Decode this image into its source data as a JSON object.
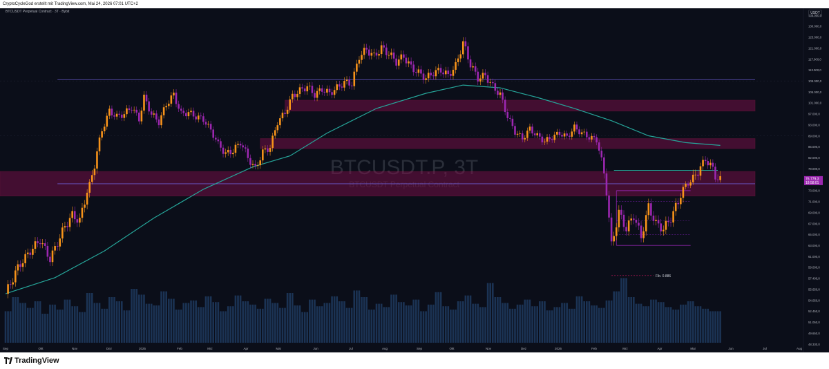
{
  "header": {
    "author_line": "CryptoCycleGod erstellt mit TradingView.com, Mai 24, 2026 07:01 UTC+2"
  },
  "chart_legend": "BTCUSDT Perpetual Contract · 3T · Bybit",
  "currency": "USDT",
  "watermark": {
    "symbol": "BTCUSDT.P, 3T",
    "name": "BTCUSDT Perpetual Contract"
  },
  "footer": {
    "brand": "TradingView"
  },
  "price_labels": {
    "last": "76.779,3",
    "countdown": "18:58:01"
  },
  "annotation": {
    "fib": "Fib. 0.886"
  },
  "colors": {
    "background": "#0b0e19",
    "up_candle": "#f7931a",
    "down_candle": "#9c27b0",
    "ma_line": "#26a69a",
    "zone_fill": "#880e4f",
    "level_line": "#6a5acd",
    "volume": "#1e3a5f"
  },
  "chart_data": {
    "type": "candlestick",
    "interval": "3T",
    "y_ticks": [
      "48.330,0",
      "49.650,0",
      "51.050,0",
      "52.450,0",
      "54.050,0",
      "55.650,0",
      "57.400,0",
      "59.000,0",
      "61.000,0",
      "63.000,0",
      "65.000,0",
      "67.000,0",
      "69.000,0",
      "71.000,0",
      "73.000,0",
      "77.000,0",
      "79.000,0",
      "82.000,0",
      "85.000,0",
      "89.000,0",
      "93.000,0",
      "97.000,0",
      "101.000,0",
      "105.000,0",
      "109.000,0",
      "113.000,0",
      "117.000,0",
      "121.000,0",
      "125.000,0",
      "130.000,0",
      "135.000,0"
    ],
    "x_ticks": [
      "Sep",
      "Okt",
      "Nov",
      "Dez",
      "2025",
      "Feb",
      "Mrz",
      "Apr",
      "Mai",
      "Jun",
      "Jul",
      "Aug",
      "Sep",
      "Okt",
      "Nov",
      "Dez",
      "2026",
      "Feb",
      "Mrz",
      "Apr",
      "Mai",
      "Jun",
      "Jul",
      "Aug"
    ],
    "price_path": [
      [
        0,
        55000
      ],
      [
        5,
        59000
      ],
      [
        10,
        62000
      ],
      [
        14,
        64000
      ],
      [
        18,
        60500
      ],
      [
        21,
        63500
      ],
      [
        24,
        66500
      ],
      [
        27,
        68500
      ],
      [
        30,
        67500
      ],
      [
        33,
        73000
      ],
      [
        36,
        80000
      ],
      [
        39,
        91000
      ],
      [
        42,
        98000
      ],
      [
        45,
        96000
      ],
      [
        48,
        97000
      ],
      [
        51,
        99500
      ],
      [
        54,
        95000
      ],
      [
        56,
        103000
      ],
      [
        59,
        97000
      ],
      [
        62,
        94000
      ],
      [
        65,
        100500
      ],
      [
        68,
        104000
      ],
      [
        71,
        97000
      ],
      [
        74,
        97500
      ],
      [
        77,
        96000
      ],
      [
        80,
        95000
      ],
      [
        83,
        91000
      ],
      [
        86,
        86000
      ],
      [
        89,
        83000
      ],
      [
        92,
        84000
      ],
      [
        95,
        86500
      ],
      [
        98,
        82000
      ],
      [
        101,
        79000
      ],
      [
        104,
        83500
      ],
      [
        107,
        85000
      ],
      [
        110,
        94000
      ],
      [
        113,
        97500
      ],
      [
        116,
        103500
      ],
      [
        119,
        105500
      ],
      [
        122,
        107000
      ],
      [
        125,
        104000
      ],
      [
        128,
        106000
      ],
      [
        131,
        104500
      ],
      [
        134,
        106500
      ],
      [
        137,
        108500
      ],
      [
        140,
        108000
      ],
      [
        143,
        118000
      ],
      [
        146,
        120500
      ],
      [
        149,
        118000
      ],
      [
        152,
        121000
      ],
      [
        155,
        119000
      ],
      [
        158,
        116000
      ],
      [
        161,
        118000
      ],
      [
        164,
        114000
      ],
      [
        167,
        112000
      ],
      [
        170,
        110000
      ],
      [
        173,
        112000
      ],
      [
        176,
        113000
      ],
      [
        179,
        111000
      ],
      [
        182,
        114500
      ],
      [
        185,
        123000
      ],
      [
        188,
        115000
      ],
      [
        191,
        110000
      ],
      [
        194,
        111000
      ],
      [
        197,
        107000
      ],
      [
        200,
        104000
      ],
      [
        203,
        96000
      ],
      [
        206,
        90500
      ],
      [
        209,
        88000
      ],
      [
        212,
        91500
      ],
      [
        215,
        89000
      ],
      [
        218,
        87000
      ],
      [
        221,
        88500
      ],
      [
        224,
        90000
      ],
      [
        227,
        88500
      ],
      [
        230,
        92000
      ],
      [
        233,
        90000
      ],
      [
        236,
        88500
      ],
      [
        239,
        87500
      ],
      [
        242,
        78000
      ],
      [
        245,
        63000
      ],
      [
        248,
        69000
      ],
      [
        251,
        66000
      ],
      [
        254,
        68500
      ],
      [
        257,
        64500
      ],
      [
        260,
        70000
      ],
      [
        263,
        67000
      ],
      [
        266,
        66000
      ],
      [
        269,
        68000
      ],
      [
        272,
        71000
      ],
      [
        275,
        75000
      ],
      [
        278,
        77000
      ],
      [
        281,
        79500
      ],
      [
        283,
        81500
      ],
      [
        285,
        80000
      ],
      [
        287,
        77800
      ],
      [
        289,
        76779
      ]
    ],
    "moving_average_path": [
      [
        0,
        55000
      ],
      [
        20,
        57500
      ],
      [
        40,
        62000
      ],
      [
        60,
        68000
      ],
      [
        80,
        73500
      ],
      [
        100,
        79500
      ],
      [
        115,
        82500
      ],
      [
        130,
        90000
      ],
      [
        150,
        99000
      ],
      [
        170,
        104500
      ],
      [
        185,
        107500
      ],
      [
        200,
        106500
      ],
      [
        215,
        103000
      ],
      [
        230,
        99000
      ],
      [
        245,
        94500
      ],
      [
        260,
        89000
      ],
      [
        275,
        86500
      ],
      [
        289,
        85500
      ]
    ],
    "volume_values": [
      0.38,
      0.55,
      0.48,
      0.42,
      0.5,
      0.35,
      0.46,
      0.4,
      0.52,
      0.44,
      0.37,
      0.6,
      0.48,
      0.41,
      0.55,
      0.5,
      0.39,
      0.65,
      0.58,
      0.47,
      0.45,
      0.62,
      0.53,
      0.4,
      0.48,
      0.51,
      0.43,
      0.56,
      0.49,
      0.38,
      0.44,
      0.57,
      0.5,
      0.46,
      0.41,
      0.53,
      0.48,
      0.42,
      0.6,
      0.45,
      0.37,
      0.52,
      0.44,
      0.48,
      0.56,
      0.5,
      0.42,
      0.63,
      0.55,
      0.4,
      0.47,
      0.43,
      0.58,
      0.49,
      0.45,
      0.52,
      0.38,
      0.46,
      0.61,
      0.44,
      0.4,
      0.5,
      0.57,
      0.47,
      0.43,
      0.72,
      0.55,
      0.48,
      0.41,
      0.46,
      0.52,
      0.44,
      0.5,
      0.39,
      0.43,
      0.48,
      0.41,
      0.56,
      0.5,
      0.45,
      0.42,
      0.51,
      0.62,
      0.78,
      0.55,
      0.47,
      0.44,
      0.52,
      0.49,
      0.43,
      0.4,
      0.46,
      0.5,
      0.44,
      0.41,
      0.38
    ],
    "resistance_zones": [
      [
        98000,
        102000
      ],
      [
        84500,
        88000
      ],
      [
        72000,
        78500
      ]
    ],
    "horizontal_levels": [
      109500,
      75500
    ],
    "range_box": {
      "from_bar": 247,
      "to_bar": 277,
      "top": 73000,
      "bottom": 63000,
      "inner_levels": [
        71000,
        67500,
        65000
      ]
    },
    "resistance_line": {
      "from_bar": 246,
      "to_bar": 288,
      "value": 78700
    },
    "fib_level": {
      "label": "Fib. 0.886",
      "value": 57800,
      "from_bar": 245,
      "to_bar": 262
    }
  }
}
